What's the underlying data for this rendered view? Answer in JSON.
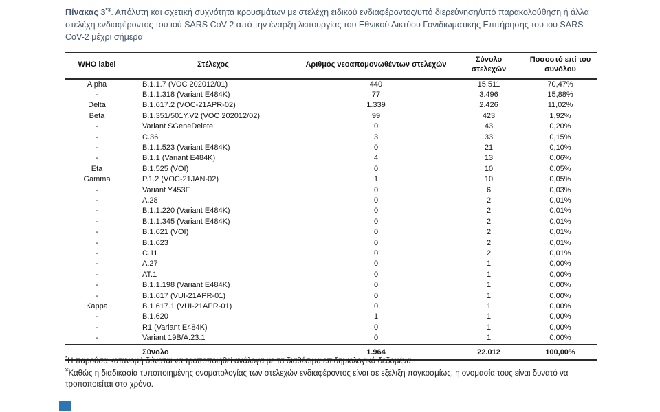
{
  "caption": {
    "bold": "Πίνακας 3",
    "superscript": "*¥",
    "rest": ". Απόλυτη και σχετική συχνότητα κρουσμάτων με στελέχη ειδικού ενδιαφέροντος/υπό διερεύνηση/υπό παρακολούθηση ή άλλα στελέχη ενδιαφέροντος του ιού SARS CoV-2 από την έναρξη λειτουργίας του Εθνικού Δικτύου Γονιδιωματικής Επιτήρησης του ιού SARS-CoV-2 μέχρι σήμερα"
  },
  "table": {
    "columns": [
      "WHO label",
      "Στέλεχος",
      "Αριθμός νεοαπομονωθέντων στελεχών",
      "Σύνολο στελεχών",
      "Ποσοστό επί του συνόλου"
    ],
    "rows": [
      {
        "who": "Alpha",
        "strain": "B.1.1.7 (VOC 202012/01)",
        "new_isolates": "440",
        "total": "15.511",
        "percent": "70,47%"
      },
      {
        "who": "-",
        "strain": "B.1.1.318 (Variant E484K)",
        "new_isolates": "77",
        "total": "3.496",
        "percent": "15,88%"
      },
      {
        "who": "Delta",
        "strain": "B.1.617.2 (VOC-21APR-02)",
        "new_isolates": "1.339",
        "total": "2.426",
        "percent": "11,02%"
      },
      {
        "who": "Beta",
        "strain": "B.1.351/501Y.V2 (VOC 202012/02)",
        "new_isolates": "99",
        "total": "423",
        "percent": "1,92%"
      },
      {
        "who": "-",
        "strain": "Variant SGeneDelete",
        "new_isolates": "0",
        "total": "43",
        "percent": "0,20%"
      },
      {
        "who": "-",
        "strain": "C.36",
        "new_isolates": "3",
        "total": "33",
        "percent": "0,15%"
      },
      {
        "who": "-",
        "strain": "B.1.1.523 (Variant E484K)",
        "new_isolates": "0",
        "total": "21",
        "percent": "0,10%"
      },
      {
        "who": "-",
        "strain": "B.1.1 (Variant E484K)",
        "new_isolates": "4",
        "total": "13",
        "percent": "0,06%"
      },
      {
        "who": "Eta",
        "strain": "B.1.525 (VOI)",
        "new_isolates": "0",
        "total": "10",
        "percent": "0,05%"
      },
      {
        "who": "Gamma",
        "strain": "P.1.2 (VOC-21JAN-02)",
        "new_isolates": "1",
        "total": "10",
        "percent": "0,05%"
      },
      {
        "who": "-",
        "strain": "Variant Y453F",
        "new_isolates": "0",
        "total": "6",
        "percent": "0,03%"
      },
      {
        "who": "-",
        "strain": "A.28",
        "new_isolates": "0",
        "total": "2",
        "percent": "0,01%"
      },
      {
        "who": "-",
        "strain": "B.1.1.220 (Variant E484K)",
        "new_isolates": "0",
        "total": "2",
        "percent": "0,01%"
      },
      {
        "who": "-",
        "strain": "B.1.1.345 (Variant E484K)",
        "new_isolates": "0",
        "total": "2",
        "percent": "0,01%"
      },
      {
        "who": "-",
        "strain": "B.1.621 (VOI)",
        "new_isolates": "0",
        "total": "2",
        "percent": "0,01%"
      },
      {
        "who": "-",
        "strain": "B.1.623",
        "new_isolates": "0",
        "total": "2",
        "percent": "0,01%"
      },
      {
        "who": "-",
        "strain": "C.11",
        "new_isolates": "0",
        "total": "2",
        "percent": "0,01%"
      },
      {
        "who": "-",
        "strain": "A.27",
        "new_isolates": "0",
        "total": "1",
        "percent": "0,00%"
      },
      {
        "who": "-",
        "strain": "AT.1",
        "new_isolates": "0",
        "total": "1",
        "percent": "0,00%"
      },
      {
        "who": "-",
        "strain": "B.1.1.198 (Variant E484K)",
        "new_isolates": "0",
        "total": "1",
        "percent": "0,00%"
      },
      {
        "who": "-",
        "strain": "B.1.617 (VUI-21APR-01)",
        "new_isolates": "0",
        "total": "1",
        "percent": "0,00%"
      },
      {
        "who": "Kappa",
        "strain": "B.1.617.1 (VUI-21APR-01)",
        "new_isolates": "0",
        "total": "1",
        "percent": "0,00%"
      },
      {
        "who": "-",
        "strain": "B.1.620",
        "new_isolates": "1",
        "total": "1",
        "percent": "0,00%"
      },
      {
        "who": "-",
        "strain": "R1 (Variant E484K)",
        "new_isolates": "0",
        "total": "1",
        "percent": "0,00%"
      },
      {
        "who": "-",
        "strain": "Variant 19B/A.23.1",
        "new_isolates": "0",
        "total": "1",
        "percent": "0,00%"
      }
    ],
    "total_row": {
      "who": "",
      "label": "Σύνολο",
      "new_isolates": "1.964",
      "total": "22.012",
      "percent": "100,00%"
    }
  },
  "footnotes": [
    {
      "mark": "*",
      "text": "Η παρούσα κατανομή δύναται να τροποποιηθεί ανάλογα με τα διαθέσιμα επιδημιολογικά δεδομένα."
    },
    {
      "mark": "¥",
      "text": "Καθώς η διαδικασία τυποποιημένης ονοματολογίας των στελεχών ενδιαφέροντος είναι σε εξέλιξη παγκοσμίως, η ονομασία τους είναι δυνατό να τροποποιείται στο χρόνο."
    }
  ],
  "colors": {
    "title_text": "#44546a",
    "table_text": "#161616",
    "border": "#2b2b2b",
    "corner_marker_blue": "#2e75b6"
  }
}
